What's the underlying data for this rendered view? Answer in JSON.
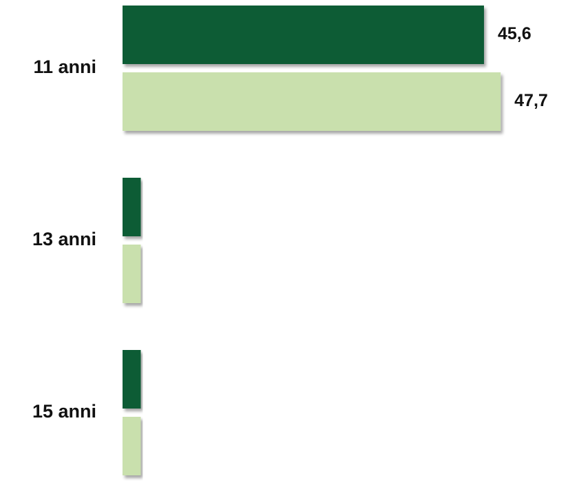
{
  "chart_data": {
    "type": "hbar",
    "categories": [
      "11 anni",
      "13 anni",
      "15 anni"
    ],
    "series": [
      {
        "color": "#0f5c36",
        "values": [
          45.6,
          2.3,
          2.3
        ],
        "value_labels": [
          "45,6",
          null,
          null
        ]
      },
      {
        "color": "#c9e0ad",
        "values": [
          47.7,
          2.3,
          2.3
        ],
        "value_labels": [
          "47,7",
          null,
          null
        ]
      }
    ],
    "xlim": [
      0,
      56.2
    ]
  }
}
